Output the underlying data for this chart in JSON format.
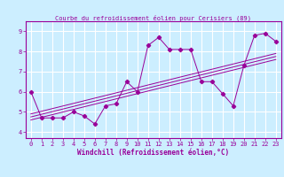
{
  "title": "Courbe du refroidissement éolien pour Cerisiers (89)",
  "xlabel": "Windchill (Refroidissement éolien,°C)",
  "bg_color": "#cceeff",
  "line_color": "#990099",
  "grid_color": "#ffffff",
  "xlim": [
    -0.5,
    23.5
  ],
  "ylim": [
    3.7,
    9.5
  ],
  "xticks": [
    0,
    1,
    2,
    3,
    4,
    5,
    6,
    7,
    8,
    9,
    10,
    11,
    12,
    13,
    14,
    15,
    16,
    17,
    18,
    19,
    20,
    21,
    22,
    23
  ],
  "yticks": [
    4,
    5,
    6,
    7,
    8,
    9
  ],
  "data_x": [
    0,
    1,
    2,
    3,
    4,
    5,
    6,
    7,
    8,
    9,
    10,
    11,
    12,
    13,
    14,
    15,
    16,
    17,
    18,
    19,
    20,
    21,
    22,
    23
  ],
  "data_y": [
    6.0,
    4.7,
    4.7,
    4.7,
    5.0,
    4.8,
    4.4,
    5.3,
    5.4,
    6.5,
    6.0,
    8.3,
    8.7,
    8.1,
    8.1,
    8.1,
    6.5,
    6.5,
    5.9,
    5.3,
    7.3,
    8.8,
    8.9,
    8.5
  ],
  "trend1_x": [
    0,
    23
  ],
  "trend1_y": [
    4.75,
    7.75
  ],
  "trend2_x": [
    0,
    23
  ],
  "trend2_y": [
    4.6,
    7.6
  ],
  "trend3_x": [
    0,
    23
  ],
  "trend3_y": [
    4.9,
    7.9
  ],
  "tick_fontsize": 5,
  "xlabel_fontsize": 5.5,
  "title_fontsize": 5
}
